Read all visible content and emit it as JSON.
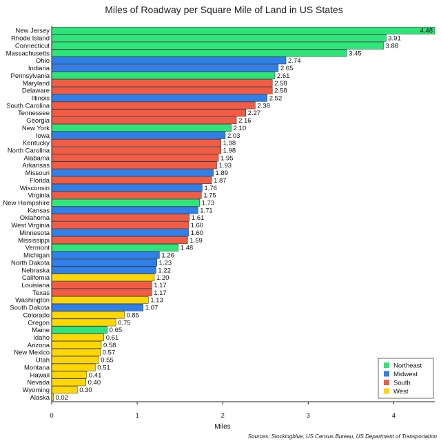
{
  "chart_data": {
    "type": "bar",
    "orientation": "horizontal",
    "title": "Miles of Roadway per Square Mile of Land in US States",
    "xlabel": "Miles",
    "ylabel": "",
    "xlim": [
      0,
      4.48
    ],
    "xticks": [
      "0",
      "1",
      "2",
      "3",
      "4"
    ],
    "grid": false,
    "legend_position": "bottom-right",
    "source": "Sources: Stockingblue, US Census Bureau, US Department of Transportation",
    "regions": [
      {
        "name": "Northeast",
        "color": "#2ee57a"
      },
      {
        "name": "Midwest",
        "color": "#2f80ea"
      },
      {
        "name": "South",
        "color": "#f25c45"
      },
      {
        "name": "West",
        "color": "#ffd700"
      }
    ],
    "bars": [
      {
        "state": "New Jersey",
        "value": 4.48,
        "label": "4.48",
        "region": "Northeast"
      },
      {
        "state": "Rhode Island",
        "value": 3.91,
        "label": "3.91",
        "region": "Northeast"
      },
      {
        "state": "Connecticut",
        "value": 3.88,
        "label": "3.88",
        "region": "Northeast"
      },
      {
        "state": "Massachusetts",
        "value": 3.45,
        "label": "3.45",
        "region": "Northeast"
      },
      {
        "state": "Ohio",
        "value": 2.74,
        "label": "2.74",
        "region": "Midwest"
      },
      {
        "state": "Indiana",
        "value": 2.65,
        "label": "2.65",
        "region": "Midwest"
      },
      {
        "state": "Pennsylvania",
        "value": 2.61,
        "label": "2.61",
        "region": "Northeast"
      },
      {
        "state": "Maryland",
        "value": 2.58,
        "label": "2.58",
        "region": "South"
      },
      {
        "state": "Delaware",
        "value": 2.58,
        "label": "2.58",
        "region": "South"
      },
      {
        "state": "Illinois",
        "value": 2.52,
        "label": "2.52",
        "region": "Midwest"
      },
      {
        "state": "South Carolina",
        "value": 2.38,
        "label": "2.38",
        "region": "South"
      },
      {
        "state": "Tennessee",
        "value": 2.27,
        "label": "2.27",
        "region": "South"
      },
      {
        "state": "Georgia",
        "value": 2.16,
        "label": "2.16",
        "region": "South"
      },
      {
        "state": "New York",
        "value": 2.1,
        "label": "2.10",
        "region": "Northeast"
      },
      {
        "state": "Iowa",
        "value": 2.03,
        "label": "2.03",
        "region": "Midwest"
      },
      {
        "state": "Kentucky",
        "value": 1.98,
        "label": "1.98",
        "region": "South"
      },
      {
        "state": "North Carolina",
        "value": 1.98,
        "label": "1.98",
        "region": "South"
      },
      {
        "state": "Alabama",
        "value": 1.95,
        "label": "1.95",
        "region": "South"
      },
      {
        "state": "Arkansas",
        "value": 1.93,
        "label": "1.93",
        "region": "South"
      },
      {
        "state": "Missouri",
        "value": 1.89,
        "label": "1.89",
        "region": "Midwest"
      },
      {
        "state": "Florida",
        "value": 1.87,
        "label": "1.87",
        "region": "South"
      },
      {
        "state": "Wisconsin",
        "value": 1.76,
        "label": "1.76",
        "region": "Midwest"
      },
      {
        "state": "Virginia",
        "value": 1.75,
        "label": "1.75",
        "region": "South"
      },
      {
        "state": "New Hampshire",
        "value": 1.73,
        "label": "1.73",
        "region": "Northeast"
      },
      {
        "state": "Kansas",
        "value": 1.71,
        "label": "1.71",
        "region": "Midwest"
      },
      {
        "state": "Oklahoma",
        "value": 1.61,
        "label": "1.61",
        "region": "South"
      },
      {
        "state": "West Virginia",
        "value": 1.6,
        "label": "1.60",
        "region": "South"
      },
      {
        "state": "Minnesota",
        "value": 1.6,
        "label": "1.60",
        "region": "Midwest"
      },
      {
        "state": "Mississippi",
        "value": 1.59,
        "label": "1.59",
        "region": "South"
      },
      {
        "state": "Vermont",
        "value": 1.48,
        "label": "1.48",
        "region": "Northeast"
      },
      {
        "state": "Michigan",
        "value": 1.26,
        "label": "1.26",
        "region": "Midwest"
      },
      {
        "state": "North Dakota",
        "value": 1.23,
        "label": "1.23",
        "region": "Midwest"
      },
      {
        "state": "Nebraska",
        "value": 1.22,
        "label": "1.22",
        "region": "Midwest"
      },
      {
        "state": "California",
        "value": 1.2,
        "label": "1.20",
        "region": "West"
      },
      {
        "state": "Louisiana",
        "value": 1.17,
        "label": "1.17",
        "region": "South"
      },
      {
        "state": "Texas",
        "value": 1.17,
        "label": "1.17",
        "region": "South"
      },
      {
        "state": "Washington",
        "value": 1.13,
        "label": "1.13",
        "region": "West"
      },
      {
        "state": "South Dakota",
        "value": 1.07,
        "label": "1.07",
        "region": "Midwest"
      },
      {
        "state": "Colorado",
        "value": 0.85,
        "label": "0.85",
        "region": "West"
      },
      {
        "state": "Oregon",
        "value": 0.75,
        "label": "0.75",
        "region": "West"
      },
      {
        "state": "Maine",
        "value": 0.65,
        "label": "0.65",
        "region": "Northeast"
      },
      {
        "state": "Idaho",
        "value": 0.61,
        "label": "0.61",
        "region": "West"
      },
      {
        "state": "Arizona",
        "value": 0.58,
        "label": "0.58",
        "region": "West"
      },
      {
        "state": "New Mexico",
        "value": 0.57,
        "label": "0.57",
        "region": "West"
      },
      {
        "state": "Utah",
        "value": 0.55,
        "label": "0.55",
        "region": "West"
      },
      {
        "state": "Montana",
        "value": 0.51,
        "label": "0.51",
        "region": "West"
      },
      {
        "state": "Hawaii",
        "value": 0.41,
        "label": "0.41",
        "region": "West"
      },
      {
        "state": "Nevada",
        "value": 0.4,
        "label": "0.40",
        "region": "West"
      },
      {
        "state": "Wyoming",
        "value": 0.3,
        "label": "0.30",
        "region": "West"
      },
      {
        "state": "Alaska",
        "value": 0.02,
        "label": "0.02",
        "region": "West"
      }
    ]
  }
}
